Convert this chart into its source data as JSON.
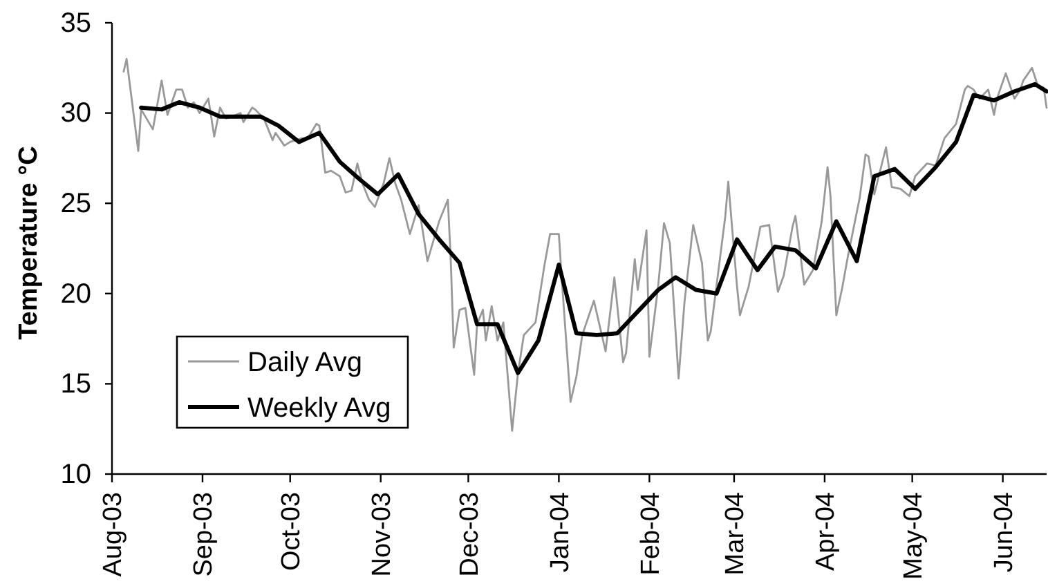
{
  "chart_data": {
    "type": "line",
    "ylabel": "Temperature °C",
    "legend": "bottom left",
    "xlim": [
      "2003-08-01",
      "2004-06-16"
    ],
    "xticks": [
      {
        "value": "2003-08-01",
        "label": "Aug-03"
      },
      {
        "value": "2003-09-01",
        "label": "Sep-03"
      },
      {
        "value": "2003-10-01",
        "label": "Oct-03"
      },
      {
        "value": "2003-11-01",
        "label": "Nov-03"
      },
      {
        "value": "2003-12-01",
        "label": "Dec-03"
      },
      {
        "value": "2004-01-01",
        "label": "Jan-04"
      },
      {
        "value": "2004-02-01",
        "label": "Feb-04"
      },
      {
        "value": "2004-03-01",
        "label": "Mar-04"
      },
      {
        "value": "2004-04-01",
        "label": "Apr-04"
      },
      {
        "value": "2004-05-01",
        "label": "May-04"
      },
      {
        "value": "2004-06-01",
        "label": "Jun-04"
      }
    ],
    "ylim": [
      10,
      35
    ],
    "yticks": [
      10,
      15,
      20,
      25,
      30,
      35
    ],
    "series": [
      {
        "name": "Daily Avg",
        "color": "#999999",
        "x": [
          "2003-08-05",
          "2003-08-06",
          "2003-08-10",
          "2003-08-11",
          "2003-08-15",
          "2003-08-18",
          "2003-08-20",
          "2003-08-23",
          "2003-08-25",
          "2003-08-27",
          "2003-08-29",
          "2003-08-31",
          "2003-09-03",
          "2003-09-05",
          "2003-09-07",
          "2003-09-09",
          "2003-09-11",
          "2003-09-14",
          "2003-09-15",
          "2003-09-18",
          "2003-09-19",
          "2003-09-22",
          "2003-09-23",
          "2003-09-25",
          "2003-09-26",
          "2003-09-29",
          "2003-10-01",
          "2003-10-05",
          "2003-10-07",
          "2003-10-10",
          "2003-10-11",
          "2003-10-13",
          "2003-10-15",
          "2003-10-18",
          "2003-10-20",
          "2003-10-22",
          "2003-10-24",
          "2003-10-26",
          "2003-10-28",
          "2003-10-30",
          "2003-11-02",
          "2003-11-04",
          "2003-11-06",
          "2003-11-08",
          "2003-11-11",
          "2003-11-14",
          "2003-11-17",
          "2003-11-21",
          "2003-11-24",
          "2003-11-25",
          "2003-11-26",
          "2003-11-28",
          "2003-11-30",
          "2003-12-03",
          "2003-12-04",
          "2003-12-06",
          "2003-12-07",
          "2003-12-09",
          "2003-12-11",
          "2003-12-13",
          "2003-12-16",
          "2003-12-18",
          "2003-12-20",
          "2003-12-24",
          "2003-12-27",
          "2003-12-29",
          "2004-01-01",
          "2004-01-02",
          "2004-01-05",
          "2004-01-07",
          "2004-01-09",
          "2004-01-13",
          "2004-01-17",
          "2004-01-20",
          "2004-01-23",
          "2004-01-24",
          "2004-01-27",
          "2004-01-28",
          "2004-01-31",
          "2004-02-01",
          "2004-02-04",
          "2004-02-06",
          "2004-02-08",
          "2004-02-11",
          "2004-02-13",
          "2004-02-16",
          "2004-02-19",
          "2004-02-21",
          "2004-02-22",
          "2004-02-27",
          "2004-02-28",
          "2004-03-02",
          "2004-03-03",
          "2004-03-06",
          "2004-03-10",
          "2004-03-13",
          "2004-03-16",
          "2004-03-18",
          "2004-03-21",
          "2004-03-22",
          "2004-03-25",
          "2004-03-28",
          "2004-03-31",
          "2004-04-02",
          "2004-04-03",
          "2004-04-05",
          "2004-04-07",
          "2004-04-09",
          "2004-04-13",
          "2004-04-15",
          "2004-04-16",
          "2004-04-18",
          "2004-04-22",
          "2004-04-24",
          "2004-04-27",
          "2004-04-30",
          "2004-05-02",
          "2004-05-06",
          "2004-05-09",
          "2004-05-12",
          "2004-05-16",
          "2004-05-19",
          "2004-05-20",
          "2004-05-22",
          "2004-05-24",
          "2004-05-27",
          "2004-05-29",
          "2004-05-30",
          "2004-06-02",
          "2004-06-05",
          "2004-06-07",
          "2004-06-08",
          "2004-06-11",
          "2004-06-13",
          "2004-06-15",
          "2004-06-16"
        ],
        "values": [
          32.3,
          33.0,
          27.9,
          30.2,
          29.1,
          31.8,
          29.9,
          31.3,
          31.3,
          30.3,
          30.6,
          30.0,
          30.8,
          28.7,
          30.3,
          29.7,
          29.8,
          30.0,
          29.5,
          30.3,
          30.2,
          29.7,
          29.3,
          28.5,
          28.9,
          28.2,
          28.4,
          28.6,
          28.6,
          29.4,
          29.3,
          26.7,
          26.8,
          26.5,
          25.6,
          25.7,
          27.2,
          26.0,
          25.2,
          24.8,
          26.1,
          27.5,
          26.1,
          25.2,
          23.3,
          24.9,
          21.8,
          24.0,
          25.2,
          21.8,
          17.0,
          19.1,
          19.2,
          15.5,
          18.3,
          19.1,
          17.4,
          19.3,
          17.4,
          18.4,
          12.4,
          15.6,
          17.7,
          18.4,
          21.5,
          23.3,
          23.3,
          20.8,
          14.0,
          15.4,
          17.7,
          19.6,
          16.8,
          20.9,
          16.2,
          16.7,
          21.9,
          20.2,
          23.5,
          16.5,
          20.4,
          23.9,
          22.8,
          15.3,
          19.5,
          23.8,
          21.7,
          17.4,
          17.9,
          24.3,
          26.2,
          20.4,
          18.8,
          20.4,
          23.7,
          23.8,
          20.1,
          21.0,
          23.7,
          24.3,
          20.5,
          21.3,
          24.0,
          27.0,
          25.4,
          18.8,
          20.3,
          22.1,
          25.3,
          27.7,
          27.6,
          25.5,
          28.1,
          25.9,
          25.8,
          25.4,
          26.5,
          27.2,
          27.1,
          28.6,
          29.4,
          31.3,
          31.5,
          31.3,
          30.8,
          31.3,
          29.9,
          30.8,
          32.2,
          30.8,
          31.3,
          31.8,
          32.5,
          31.5,
          31.4,
          30.3
        ]
      },
      {
        "name": "Weekly Avg",
        "color": "#000000",
        "x": [
          "2003-08-11",
          "2003-08-18",
          "2003-08-24",
          "2003-08-31",
          "2003-09-07",
          "2003-09-14",
          "2003-09-21",
          "2003-09-27",
          "2003-10-04",
          "2003-10-11",
          "2003-10-18",
          "2003-10-25",
          "2003-10-31",
          "2003-11-07",
          "2003-11-14",
          "2003-11-21",
          "2003-11-28",
          "2003-12-04",
          "2003-12-11",
          "2003-12-18",
          "2003-12-25",
          "2004-01-01",
          "2004-01-07",
          "2004-01-14",
          "2004-01-21",
          "2004-01-28",
          "2004-02-04",
          "2004-02-10",
          "2004-02-17",
          "2004-02-24",
          "2004-03-02",
          "2004-03-09",
          "2004-03-15",
          "2004-03-22",
          "2004-03-29",
          "2004-04-05",
          "2004-04-12",
          "2004-04-18",
          "2004-04-25",
          "2004-05-02",
          "2004-05-09",
          "2004-05-16",
          "2004-05-22",
          "2004-05-29",
          "2004-06-05",
          "2004-06-12",
          "2004-06-16"
        ],
        "values": [
          30.3,
          30.2,
          30.6,
          30.3,
          29.8,
          29.8,
          29.8,
          29.3,
          28.4,
          28.9,
          27.3,
          26.3,
          25.5,
          26.6,
          24.4,
          23.0,
          21.7,
          18.3,
          18.3,
          15.6,
          17.4,
          21.6,
          17.8,
          17.7,
          17.8,
          19.0,
          20.2,
          20.9,
          20.2,
          20.0,
          23.0,
          21.3,
          22.6,
          22.4,
          21.4,
          24.0,
          21.8,
          26.5,
          26.9,
          25.8,
          27.0,
          28.4,
          31.0,
          30.7,
          31.2,
          31.6,
          31.2
        ]
      }
    ]
  }
}
